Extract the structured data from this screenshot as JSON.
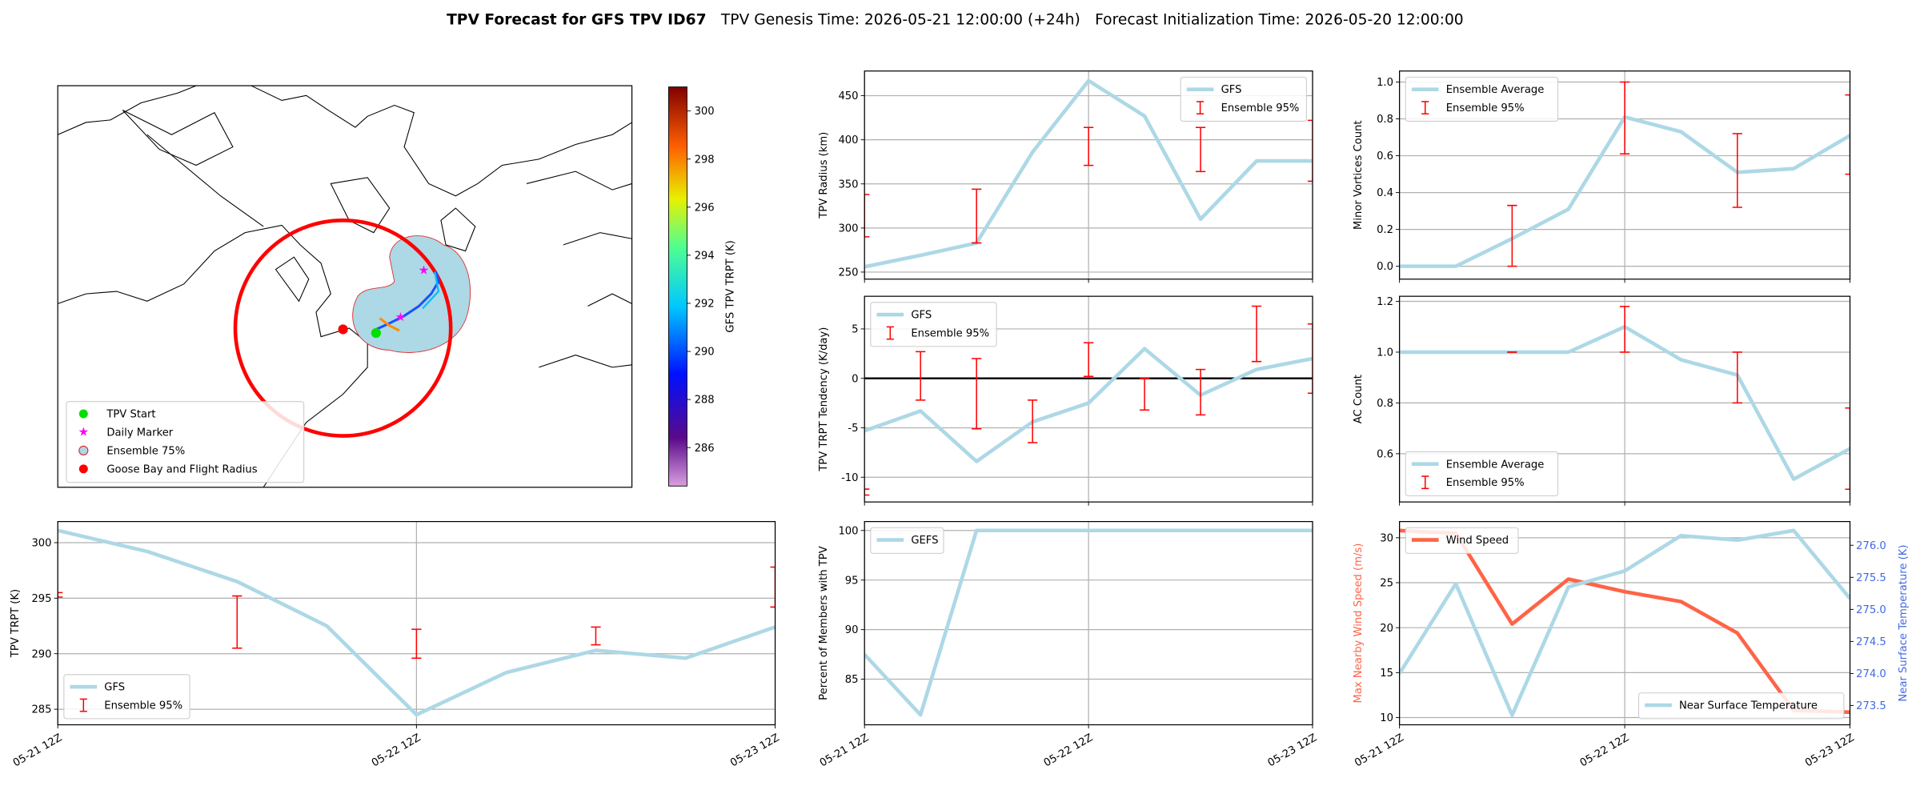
{
  "title": {
    "main": "TPV Forecast for GFS TPV ID67",
    "genesis": "TPV Genesis Time: 2026-05-21 12:00:00 (+24h)",
    "init": "Forecast Initialization Time: 2026-05-20 12:00:00"
  },
  "chart_data": [
    {
      "type": "map",
      "legend": [
        "TPV Start",
        "Daily Marker",
        "Ensemble 75%",
        "Goose Bay and Flight Radius"
      ],
      "colorbar": {
        "label": "GFS TPV TRPT (K)",
        "lim": [
          284.4,
          301.0
        ],
        "ticks": [
          286,
          288,
          290,
          292,
          294,
          296,
          298,
          300
        ]
      }
    },
    {
      "type": "line",
      "ylabel": "TPV Radius (km)",
      "categories": [
        null,
        null,
        null,
        null,
        null,
        null,
        null,
        null,
        null
      ],
      "ylim": [
        242,
        478
      ],
      "yticks": [
        250,
        300,
        350,
        400,
        450
      ],
      "grid": true,
      "legend": "upper right",
      "series": [
        {
          "name": "GFS",
          "color": "#add8e6",
          "kind": "line",
          "values": [
            256,
            269,
            283,
            386,
            467,
            427,
            310,
            376,
            376
          ]
        },
        {
          "name": "Ensemble 95%",
          "color": "#ff0000",
          "kind": "errorbar",
          "low": [
            290,
            null,
            283,
            null,
            371,
            null,
            364,
            null,
            353
          ],
          "high": [
            338,
            null,
            344,
            null,
            414,
            null,
            414,
            null,
            422
          ]
        }
      ]
    },
    {
      "type": "line",
      "ylabel": "Minor Vortices Count",
      "categories": [
        null,
        null,
        null,
        null,
        null,
        null,
        null,
        null,
        null
      ],
      "ylim": [
        -0.07,
        1.06
      ],
      "yticks": [
        {
          "value": 0,
          "label": "0.0"
        },
        0.2,
        0.4,
        0.6,
        0.8,
        {
          "value": 1,
          "label": "1.0"
        }
      ],
      "grid": true,
      "legend": "upper left",
      "series": [
        {
          "name": "Ensemble Average",
          "color": "#add8e6",
          "kind": "line",
          "values": [
            0,
            0,
            0.15,
            0.31,
            0.81,
            0.73,
            0.51,
            0.53,
            0.71
          ]
        },
        {
          "name": "Ensemble 95%",
          "color": "#ff0000",
          "kind": "errorbar",
          "low": [
            null,
            null,
            0,
            null,
            0.61,
            null,
            0.32,
            null,
            0.5
          ],
          "high": [
            null,
            null,
            0.33,
            null,
            1.0,
            null,
            0.72,
            null,
            0.93
          ]
        }
      ]
    },
    {
      "type": "line",
      "ylabel": "TPV TRPT Tendency (K/day)",
      "categories": [
        null,
        null,
        null,
        null,
        null,
        null,
        null,
        null,
        null
      ],
      "ylim": [
        -12.5,
        8.3
      ],
      "yticks": [
        -10,
        -5,
        0,
        5
      ],
      "grid": true,
      "hlines": [
        0
      ],
      "legend": "upper left",
      "series": [
        {
          "name": "GFS",
          "color": "#add8e6",
          "kind": "line",
          "values": [
            -5.3,
            -3.3,
            -8.4,
            -4.4,
            -2.5,
            3.0,
            -1.7,
            0.9,
            2.0
          ]
        },
        {
          "name": "Ensemble 95%",
          "color": "#ff0000",
          "kind": "errorbar",
          "low": [
            -11.8,
            -2.2,
            -5.1,
            -6.5,
            0.2,
            -3.2,
            -3.7,
            1.7,
            -1.5
          ],
          "high": [
            -11.2,
            2.7,
            2.0,
            -2.2,
            3.6,
            0,
            0.9,
            7.3,
            5.5
          ]
        }
      ]
    },
    {
      "type": "line",
      "ylabel": "AC Count",
      "categories": [
        null,
        null,
        null,
        null,
        null,
        null,
        null,
        null,
        null
      ],
      "ylim": [
        0.41,
        1.22
      ],
      "yticks": [
        0.6,
        0.8,
        {
          "value": 1,
          "label": "1.0"
        },
        1.2
      ],
      "grid": true,
      "legend": "lower left",
      "series": [
        {
          "name": "Ensemble Average",
          "color": "#add8e6",
          "kind": "line",
          "values": [
            1,
            1,
            1,
            1,
            1.1,
            0.97,
            0.91,
            0.5,
            0.62
          ]
        },
        {
          "name": "Ensemble 95%",
          "color": "#ff0000",
          "kind": "errorbar",
          "low": [
            null,
            null,
            1.0,
            null,
            1.0,
            null,
            0.8,
            null,
            0.46
          ],
          "high": [
            null,
            null,
            1.0,
            null,
            1.18,
            null,
            1.0,
            null,
            0.78
          ]
        }
      ]
    },
    {
      "type": "line",
      "ylabel": "TPV TRPT (K)",
      "categories": [
        "05-21 12Z",
        null,
        null,
        null,
        "05-22 12Z",
        null,
        null,
        null,
        "05-23 12Z"
      ],
      "ylim": [
        283.6,
        301.9
      ],
      "yticks": [
        285,
        290,
        295,
        300
      ],
      "grid": true,
      "legend": "lower left",
      "series": [
        {
          "name": "GFS",
          "color": "#add8e6",
          "kind": "line",
          "values": [
            301.1,
            299.2,
            296.5,
            292.5,
            284.5,
            288.3,
            290.3,
            289.6,
            292.4
          ]
        },
        {
          "name": "Ensemble 95%",
          "color": "#ff0000",
          "kind": "errorbar",
          "low": [
            295.1,
            null,
            290.5,
            null,
            289.6,
            null,
            290.8,
            null,
            294.2
          ],
          "high": [
            295.5,
            null,
            295.2,
            null,
            292.2,
            null,
            292.4,
            null,
            297.8
          ]
        }
      ]
    },
    {
      "type": "line",
      "ylabel": "Percent of Members with TPV",
      "categories": [
        "05-21 12Z",
        null,
        null,
        null,
        "05-22 12Z",
        null,
        null,
        null,
        "05-23 12Z"
      ],
      "ylim": [
        80.4,
        100.9
      ],
      "yticks": [
        85,
        90,
        95,
        100
      ],
      "grid": true,
      "legend": "upper left",
      "series": [
        {
          "name": "GEFS",
          "color": "#add8e6",
          "kind": "line",
          "values": [
            87.5,
            81.4,
            100,
            100,
            100,
            100,
            100,
            100,
            100
          ]
        }
      ]
    },
    {
      "type": "line",
      "ylabel": "Max Nearby Wind Speed (m/s)",
      "y2label": "Near Surface Temperature (K)",
      "categories": [
        "05-21 12Z",
        null,
        null,
        null,
        "05-22 12Z",
        null,
        null,
        null,
        "05-23 12Z"
      ],
      "ylim": [
        9.2,
        31.8
      ],
      "yticks": [
        10,
        15,
        20,
        25,
        30
      ],
      "y2lim": [
        273.2,
        276.37
      ],
      "y2ticks": [
        {
          "value": 273.5,
          "label": "273.5"
        },
        {
          "value": 274,
          "label": "274.0"
        },
        {
          "value": 274.5,
          "label": "274.5"
        },
        {
          "value": 275,
          "label": "275.0"
        },
        {
          "value": 275.5,
          "label": "275.5"
        },
        {
          "value": 276,
          "label": "276.0"
        }
      ],
      "grid": true,
      "legend": "upper left",
      "legend2": "lower right",
      "ylabel_color": "#ff6347",
      "y2label_color": "#4169e1",
      "series": [
        {
          "name": "Wind Speed",
          "color": "#ff6347",
          "kind": "line",
          "values": [
            30.8,
            30.5,
            20.4,
            25.4,
            24.0,
            22.9,
            19.4,
            10.8,
            10.6
          ]
        },
        {
          "name": "Near Surface Temperature",
          "color": "#add8e6",
          "kind": "line",
          "axis": "y2",
          "values": [
            274.0,
            275.4,
            273.35,
            275.35,
            275.6,
            276.15,
            276.08,
            276.23,
            275.17
          ]
        }
      ]
    }
  ]
}
